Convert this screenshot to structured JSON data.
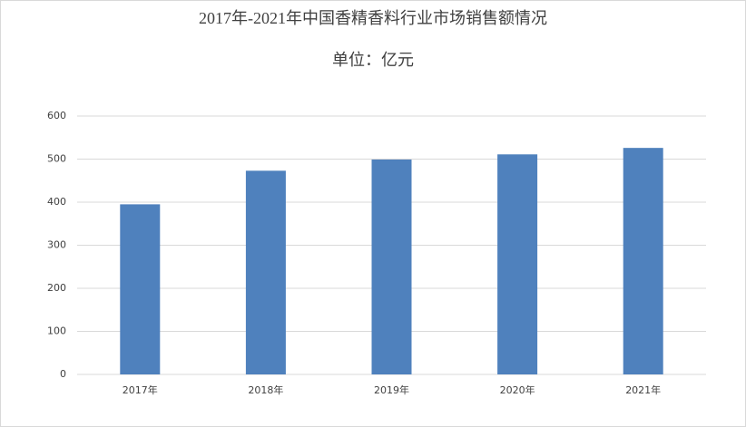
{
  "chart_data": {
    "type": "bar",
    "title": "2017年-2021年中国香精香料行业市场销售额情况",
    "subtitle": "单位：亿元",
    "categories": [
      "2017年",
      "2018年",
      "2019年",
      "2020年",
      "2021年"
    ],
    "values": [
      395,
      473,
      499,
      511,
      526
    ],
    "color": "#4f81bd",
    "ylim": [
      0,
      600
    ],
    "yticks": [
      0,
      100,
      200,
      300,
      400,
      500,
      600
    ],
    "grid": true
  }
}
